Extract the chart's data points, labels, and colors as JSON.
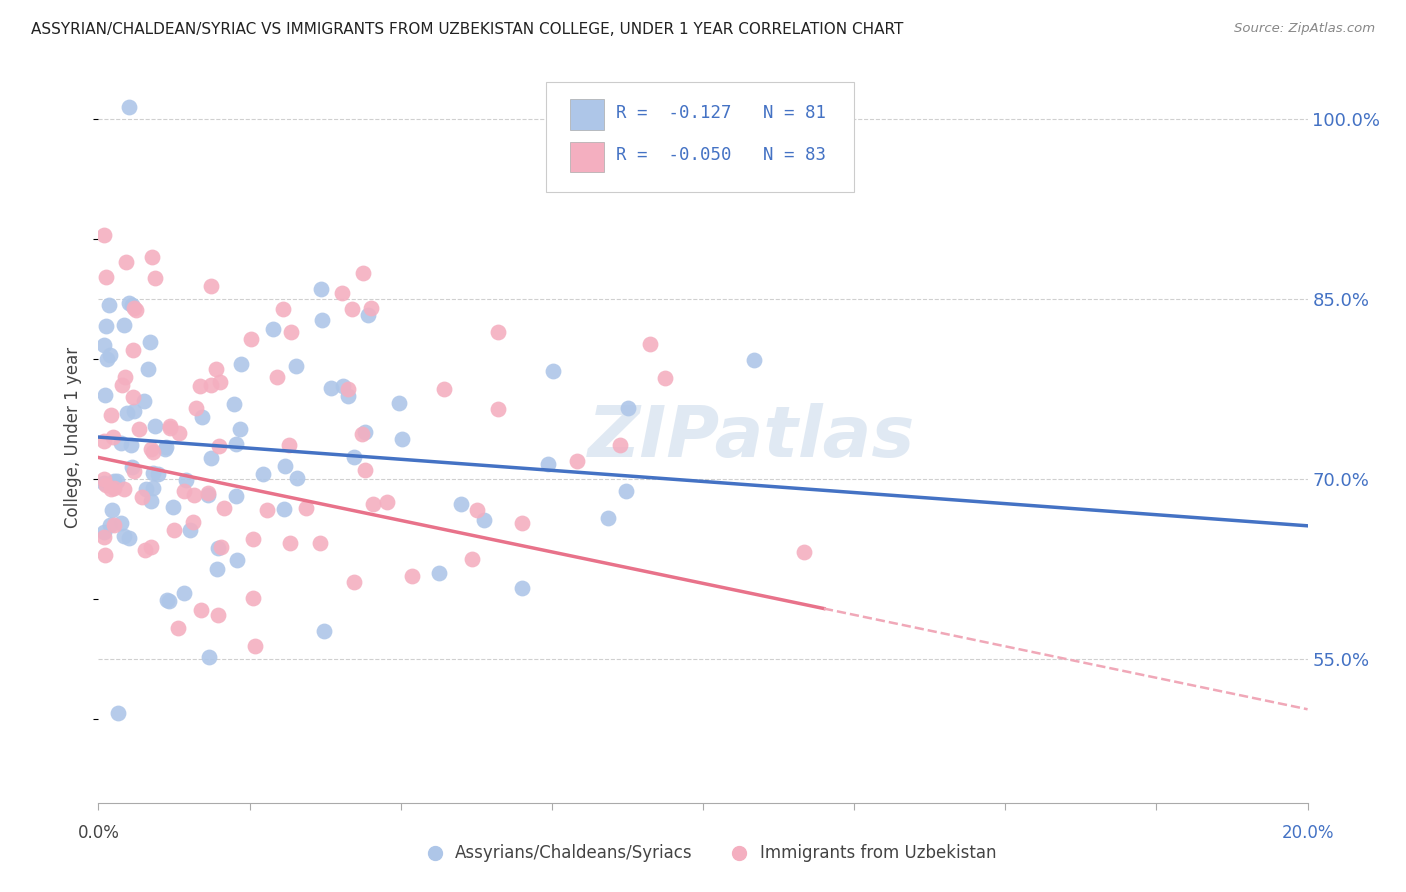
{
  "title": "ASSYRIAN/CHALDEAN/SYRIAC VS IMMIGRANTS FROM UZBEKISTAN COLLEGE, UNDER 1 YEAR CORRELATION CHART",
  "source": "Source: ZipAtlas.com",
  "ylabel": "College, Under 1 year",
  "ytick_labels": [
    "55.0%",
    "70.0%",
    "85.0%",
    "100.0%"
  ],
  "ytick_values": [
    0.55,
    0.7,
    0.85,
    1.0
  ],
  "xtick_values": [
    0.0,
    0.025,
    0.05,
    0.075,
    0.1,
    0.125,
    0.15,
    0.175,
    0.2
  ],
  "xlim": [
    0.0,
    0.2
  ],
  "ylim": [
    0.43,
    1.04
  ],
  "blue_r": -0.127,
  "blue_n": 81,
  "pink_r": -0.05,
  "pink_n": 83,
  "blue_color": "#aec6e8",
  "pink_color": "#f4afc0",
  "blue_line_color": "#4472c4",
  "pink_line_color": "#e8728a",
  "pink_dash_color": "#f0a8b8",
  "watermark": "ZIPatlas",
  "background_color": "#ffffff",
  "grid_color": "#d0d0d0",
  "blue_intercept": 0.735,
  "blue_slope": -0.37,
  "pink_intercept": 0.718,
  "pink_slope": -1.05,
  "legend_blue_text": "R =  -0.127   N = 81",
  "legend_pink_text": "R =  -0.050   N = 83",
  "label_blue": "Assyrians/Chaldeans/Syriacs",
  "label_pink": "Immigrants from Uzbekistan"
}
